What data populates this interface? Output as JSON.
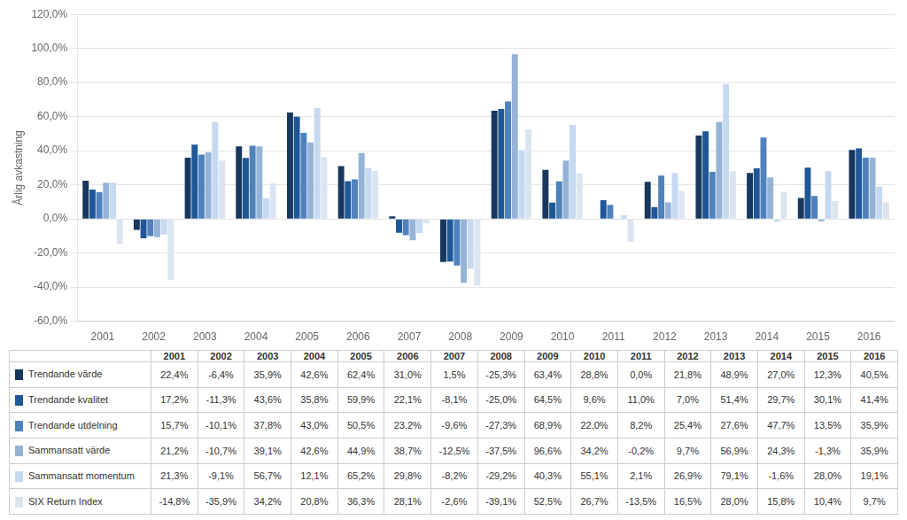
{
  "chart_data": {
    "type": "bar",
    "y_label": "Årlig avkastning",
    "categories": [
      "2001",
      "2002",
      "2003",
      "2004",
      "2005",
      "2006",
      "2007",
      "2008",
      "2009",
      "2010",
      "2011",
      "2012",
      "2013",
      "2014",
      "2015",
      "2016"
    ],
    "series": [
      {
        "name": "Trendande värde",
        "color": "#17375E",
        "values": [
          22.4,
          -6.4,
          35.9,
          42.6,
          62.4,
          31.0,
          1.5,
          -25.3,
          63.4,
          28.8,
          0.0,
          21.8,
          48.9,
          27.0,
          12.3,
          40.5
        ],
        "value_labels": [
          "22,4%",
          "-6,4%",
          "35,9%",
          "42,6%",
          "62,4%",
          "31,0%",
          "1,5%",
          "-25,3%",
          "63,4%",
          "28,8%",
          "0,0%",
          "21,8%",
          "48,9%",
          "27,0%",
          "12,3%",
          "40,5%"
        ]
      },
      {
        "name": "Trendande kvalitet",
        "color": "#1F5796",
        "values": [
          17.2,
          -11.3,
          43.6,
          35.8,
          59.9,
          22.1,
          -8.1,
          -25.0,
          64.5,
          9.6,
          11.0,
          7.0,
          51.4,
          29.7,
          30.1,
          41.4
        ],
        "value_labels": [
          "17,2%",
          "-11,3%",
          "43,6%",
          "35,8%",
          "59,9%",
          "22,1%",
          "-8,1%",
          "-25,0%",
          "64,5%",
          "9,6%",
          "11,0%",
          "7,0%",
          "51,4%",
          "29,7%",
          "30,1%",
          "41,4%"
        ]
      },
      {
        "name": "Trendande utdelning",
        "color": "#4F81BD",
        "values": [
          15.7,
          -10.1,
          37.8,
          43.0,
          50.5,
          23.2,
          -9.6,
          -27.3,
          68.9,
          22.0,
          8.2,
          25.4,
          27.6,
          47.7,
          13.5,
          35.9
        ],
        "value_labels": [
          "15,7%",
          "-10,1%",
          "37,8%",
          "43,0%",
          "50,5%",
          "23,2%",
          "-9,6%",
          "-27,3%",
          "68,9%",
          "22,0%",
          "8,2%",
          "25,4%",
          "27,6%",
          "47,7%",
          "13,5%",
          "35,9%"
        ]
      },
      {
        "name": "Sammansatt värde",
        "color": "#95B3D7",
        "values": [
          21.2,
          -10.7,
          39.1,
          42.6,
          44.9,
          38.7,
          -12.5,
          -37.5,
          96.6,
          34.2,
          -0.2,
          9.7,
          56.9,
          24.3,
          -1.3,
          35.9
        ],
        "value_labels": [
          "21,2%",
          "-10,7%",
          "39,1%",
          "42,6%",
          "44,9%",
          "38,7%",
          "-12,5%",
          "-37,5%",
          "96,6%",
          "34,2%",
          "-0,2%",
          "9,7%",
          "56,9%",
          "24,3%",
          "-1,3%",
          "35,9%"
        ]
      },
      {
        "name": "Sammansatt momentum",
        "color": "#C5D9F1",
        "values": [
          21.3,
          -9.1,
          56.7,
          12.1,
          65.2,
          29.8,
          -8.2,
          -29.2,
          40.3,
          55.1,
          2.1,
          26.9,
          79.1,
          -1.6,
          28.0,
          19.1
        ],
        "value_labels": [
          "21,3%",
          "-9,1%",
          "56,7%",
          "12,1%",
          "65,2%",
          "29,8%",
          "-8,2%",
          "-29,2%",
          "40,3%",
          "55,1%",
          "2,1%",
          "26,9%",
          "79,1%",
          "-1,6%",
          "28,0%",
          "19,1%"
        ]
      },
      {
        "name": "SIX Return Index",
        "color": "#DBE5F1",
        "values": [
          -14.8,
          -35.9,
          34.2,
          20.8,
          36.3,
          28.1,
          -2.6,
          -39.1,
          52.5,
          26.7,
          -13.5,
          16.5,
          28.0,
          15.8,
          10.4,
          9.7
        ],
        "value_labels": [
          "-14,8%",
          "-35,9%",
          "34,2%",
          "20,8%",
          "36,3%",
          "28,1%",
          "-2,6%",
          "-39,1%",
          "52,5%",
          "26,7%",
          "-13,5%",
          "16,5%",
          "28,0%",
          "15,8%",
          "10,4%",
          "9,7%"
        ]
      }
    ],
    "ylim": [
      -60,
      120
    ],
    "yticks": [
      {
        "value": -60,
        "label": "-60,0%"
      },
      {
        "value": -40,
        "label": "-40,0%"
      },
      {
        "value": -20,
        "label": "-20,0%"
      },
      {
        "value": 0,
        "label": "0,0%"
      },
      {
        "value": 20,
        "label": "20,0%"
      },
      {
        "value": 40,
        "label": "40,0%"
      },
      {
        "value": 60,
        "label": "60,0%"
      },
      {
        "value": 80,
        "label": "80,0%"
      },
      {
        "value": 100,
        "label": "100,0%"
      },
      {
        "value": 120,
        "label": "120,0%"
      }
    ],
    "grid": true
  }
}
